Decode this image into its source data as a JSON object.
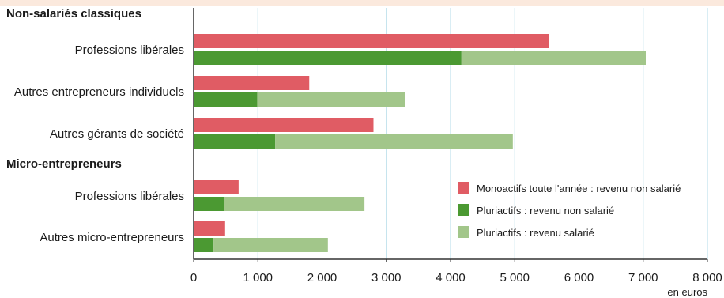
{
  "chart_data": {
    "type": "bar",
    "orientation": "horizontal",
    "xlabel": "en euros",
    "xlim": [
      0,
      8000
    ],
    "x_ticks": [
      0,
      1000,
      2000,
      3000,
      4000,
      5000,
      6000,
      7000,
      8000
    ],
    "x_tick_labels": [
      "0",
      "1 000",
      "2 000",
      "3 000",
      "4 000",
      "5 000",
      "6 000",
      "7 000",
      "8 000"
    ],
    "grid": true,
    "legend_position": "lower-right",
    "groups": [
      {
        "heading": "Non-salariés classiques",
        "categories": [
          {
            "label": "Professions libérales",
            "monoactifs_non_salarie": 5530,
            "pluriactifs_non_salarie": 4170,
            "pluriactifs_salarie": 2870
          },
          {
            "label": "Autres entrepreneurs individuels",
            "monoactifs_non_salarie": 1800,
            "pluriactifs_non_salarie": 990,
            "pluriactifs_salarie": 2300
          },
          {
            "label": "Autres gérants de société",
            "monoactifs_non_salarie": 2800,
            "pluriactifs_non_salarie": 1270,
            "pluriactifs_salarie": 3700
          }
        ]
      },
      {
        "heading": "Micro-entrepreneurs",
        "categories": [
          {
            "label": "Professions libérales",
            "monoactifs_non_salarie": 700,
            "pluriactifs_non_salarie": 470,
            "pluriactifs_salarie": 2190
          },
          {
            "label": "Autres micro-entrepreneurs",
            "monoactifs_non_salarie": 490,
            "pluriactifs_non_salarie": 310,
            "pluriactifs_salarie": 1780
          }
        ]
      }
    ],
    "series": [
      {
        "key": "monoactifs_non_salarie",
        "name": "Monoactifs toute l'année : revenu non salarié",
        "color": "#e05c64"
      },
      {
        "key": "pluriactifs_non_salarie",
        "name": "Pluriactifs : revenu non salarié",
        "color": "#4b9932"
      },
      {
        "key": "pluriactifs_salarie",
        "name": "Pluriactifs : revenu salarié",
        "color": "#a2c68a"
      }
    ],
    "colors": {
      "grid": "#b3dbe8",
      "axis": "#333333"
    }
  }
}
